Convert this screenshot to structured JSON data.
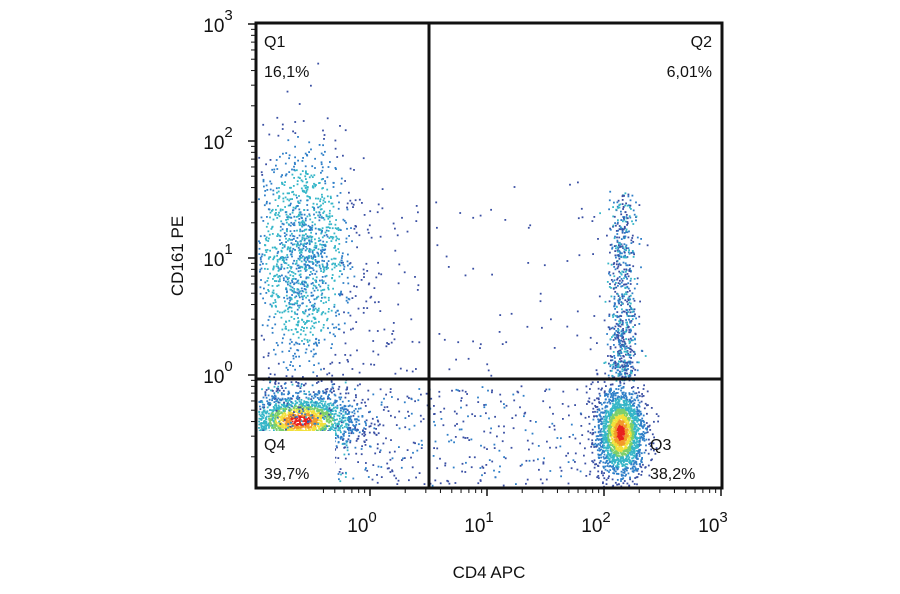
{
  "chart_data": {
    "type": "scatter",
    "title": "",
    "xlabel": "CD4 APC",
    "ylabel": "CD161 PE",
    "x_scale": "log",
    "y_scale": "log",
    "x_ticks": [
      {
        "base": "10",
        "exp": "0",
        "value": 1
      },
      {
        "base": "10",
        "exp": "1",
        "value": 10
      },
      {
        "base": "10",
        "exp": "2",
        "value": 100
      },
      {
        "base": "10",
        "exp": "3",
        "value": 1000
      }
    ],
    "y_ticks": [
      {
        "base": "10",
        "exp": "0",
        "value": 1
      },
      {
        "base": "10",
        "exp": "1",
        "value": 10
      },
      {
        "base": "10",
        "exp": "2",
        "value": 100
      },
      {
        "base": "10",
        "exp": "3",
        "value": 1000
      }
    ],
    "gate": {
      "x": 3,
      "y": 0.95
    },
    "quadrants": [
      {
        "name": "Q1",
        "percent": "16,1%",
        "percent_value": 16.1,
        "position": "top-left"
      },
      {
        "name": "Q2",
        "percent": "6,01%",
        "percent_value": 6.01,
        "position": "top-right"
      },
      {
        "name": "Q3",
        "percent": "38,2%",
        "percent_value": 38.2,
        "position": "bottom-right"
      },
      {
        "name": "Q4",
        "percent": "39,7%",
        "percent_value": 39.7,
        "position": "bottom-left"
      }
    ],
    "density_colors": [
      "#3a4fa3",
      "#2f7fc8",
      "#36b6c8",
      "#7ccf6a",
      "#f2e03a",
      "#f29b2a",
      "#e8231e"
    ],
    "grid": false,
    "legend": "none"
  }
}
